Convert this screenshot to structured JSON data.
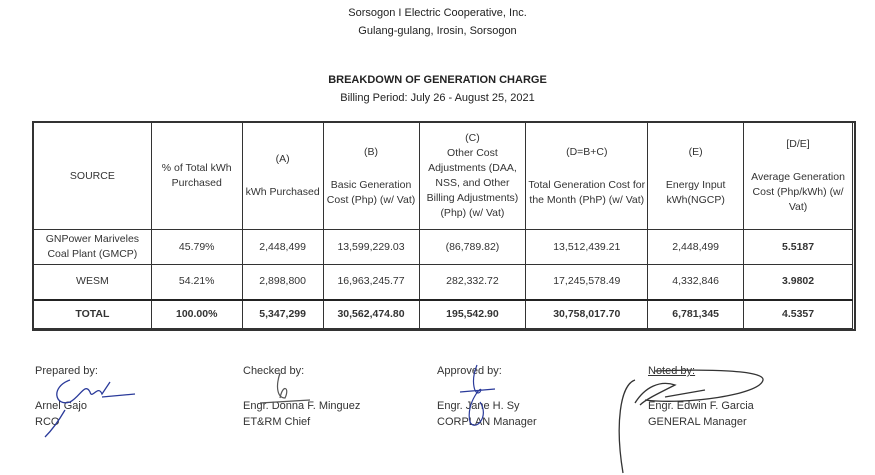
{
  "header": {
    "org": "Sorsogon I Electric Cooperative, Inc.",
    "address": "Gulang-gulang, Irosin, Sorsogon"
  },
  "title": "BREAKDOWN OF GENERATION CHARGE",
  "billing_period": "Billing Period: July 26 - August 25, 2021",
  "table": {
    "columns": [
      {
        "code": "",
        "label": "SOURCE"
      },
      {
        "code": "",
        "label": "% of Total kWh Purchased"
      },
      {
        "code": "(A)",
        "label": "kWh Purchased"
      },
      {
        "code": "(B)",
        "label": "Basic Generation Cost (Php) (w/ Vat)"
      },
      {
        "code": "(C)",
        "label": "Other Cost Adjustments (DAA, NSS, and Other Billing Adjustments) (Php) (w/ Vat)"
      },
      {
        "code": "(D=B+C)",
        "label": "Total Generation Cost for the Month (PhP) (w/ Vat)"
      },
      {
        "code": "(E)",
        "label": "Energy Input kWh(NGCP)"
      },
      {
        "code": "[D/E]",
        "label": "Average Generation Cost (Php/kWh) (w/ Vat)"
      }
    ],
    "rows": [
      [
        "GNPower Mariveles Coal Plant (GMCP)",
        "45.79%",
        "2,448,499",
        "13,599,229.03",
        "(86,789.82)",
        "13,512,439.21",
        "2,448,499",
        "5.5187"
      ],
      [
        "WESM",
        "54.21%",
        "2,898,800",
        "16,963,245.77",
        "282,332.72",
        "17,245,578.49",
        "4,332,846",
        "3.9802"
      ]
    ],
    "total": [
      "TOTAL",
      "100.00%",
      "5,347,299",
      "30,562,474.80",
      "195,542.90",
      "30,758,017.70",
      "6,781,345",
      "4.5357"
    ]
  },
  "signatories": [
    {
      "label": "Prepared by:",
      "name": "Arnel Gajo",
      "position": "RCO"
    },
    {
      "label": "Checked by:",
      "name": "Engr. Donna F. Minguez",
      "position": "ET&RM Chief"
    },
    {
      "label": "Approved by:",
      "name": "Engr. Jane H. Sy",
      "position": "CORPLAN Manager"
    },
    {
      "label": "Noted by:",
      "name": "Engr. Edwin F. Garcia",
      "position": "GENERAL Manager"
    }
  ],
  "colors": {
    "ink": "#333333",
    "signature": "#2a3a9a"
  }
}
